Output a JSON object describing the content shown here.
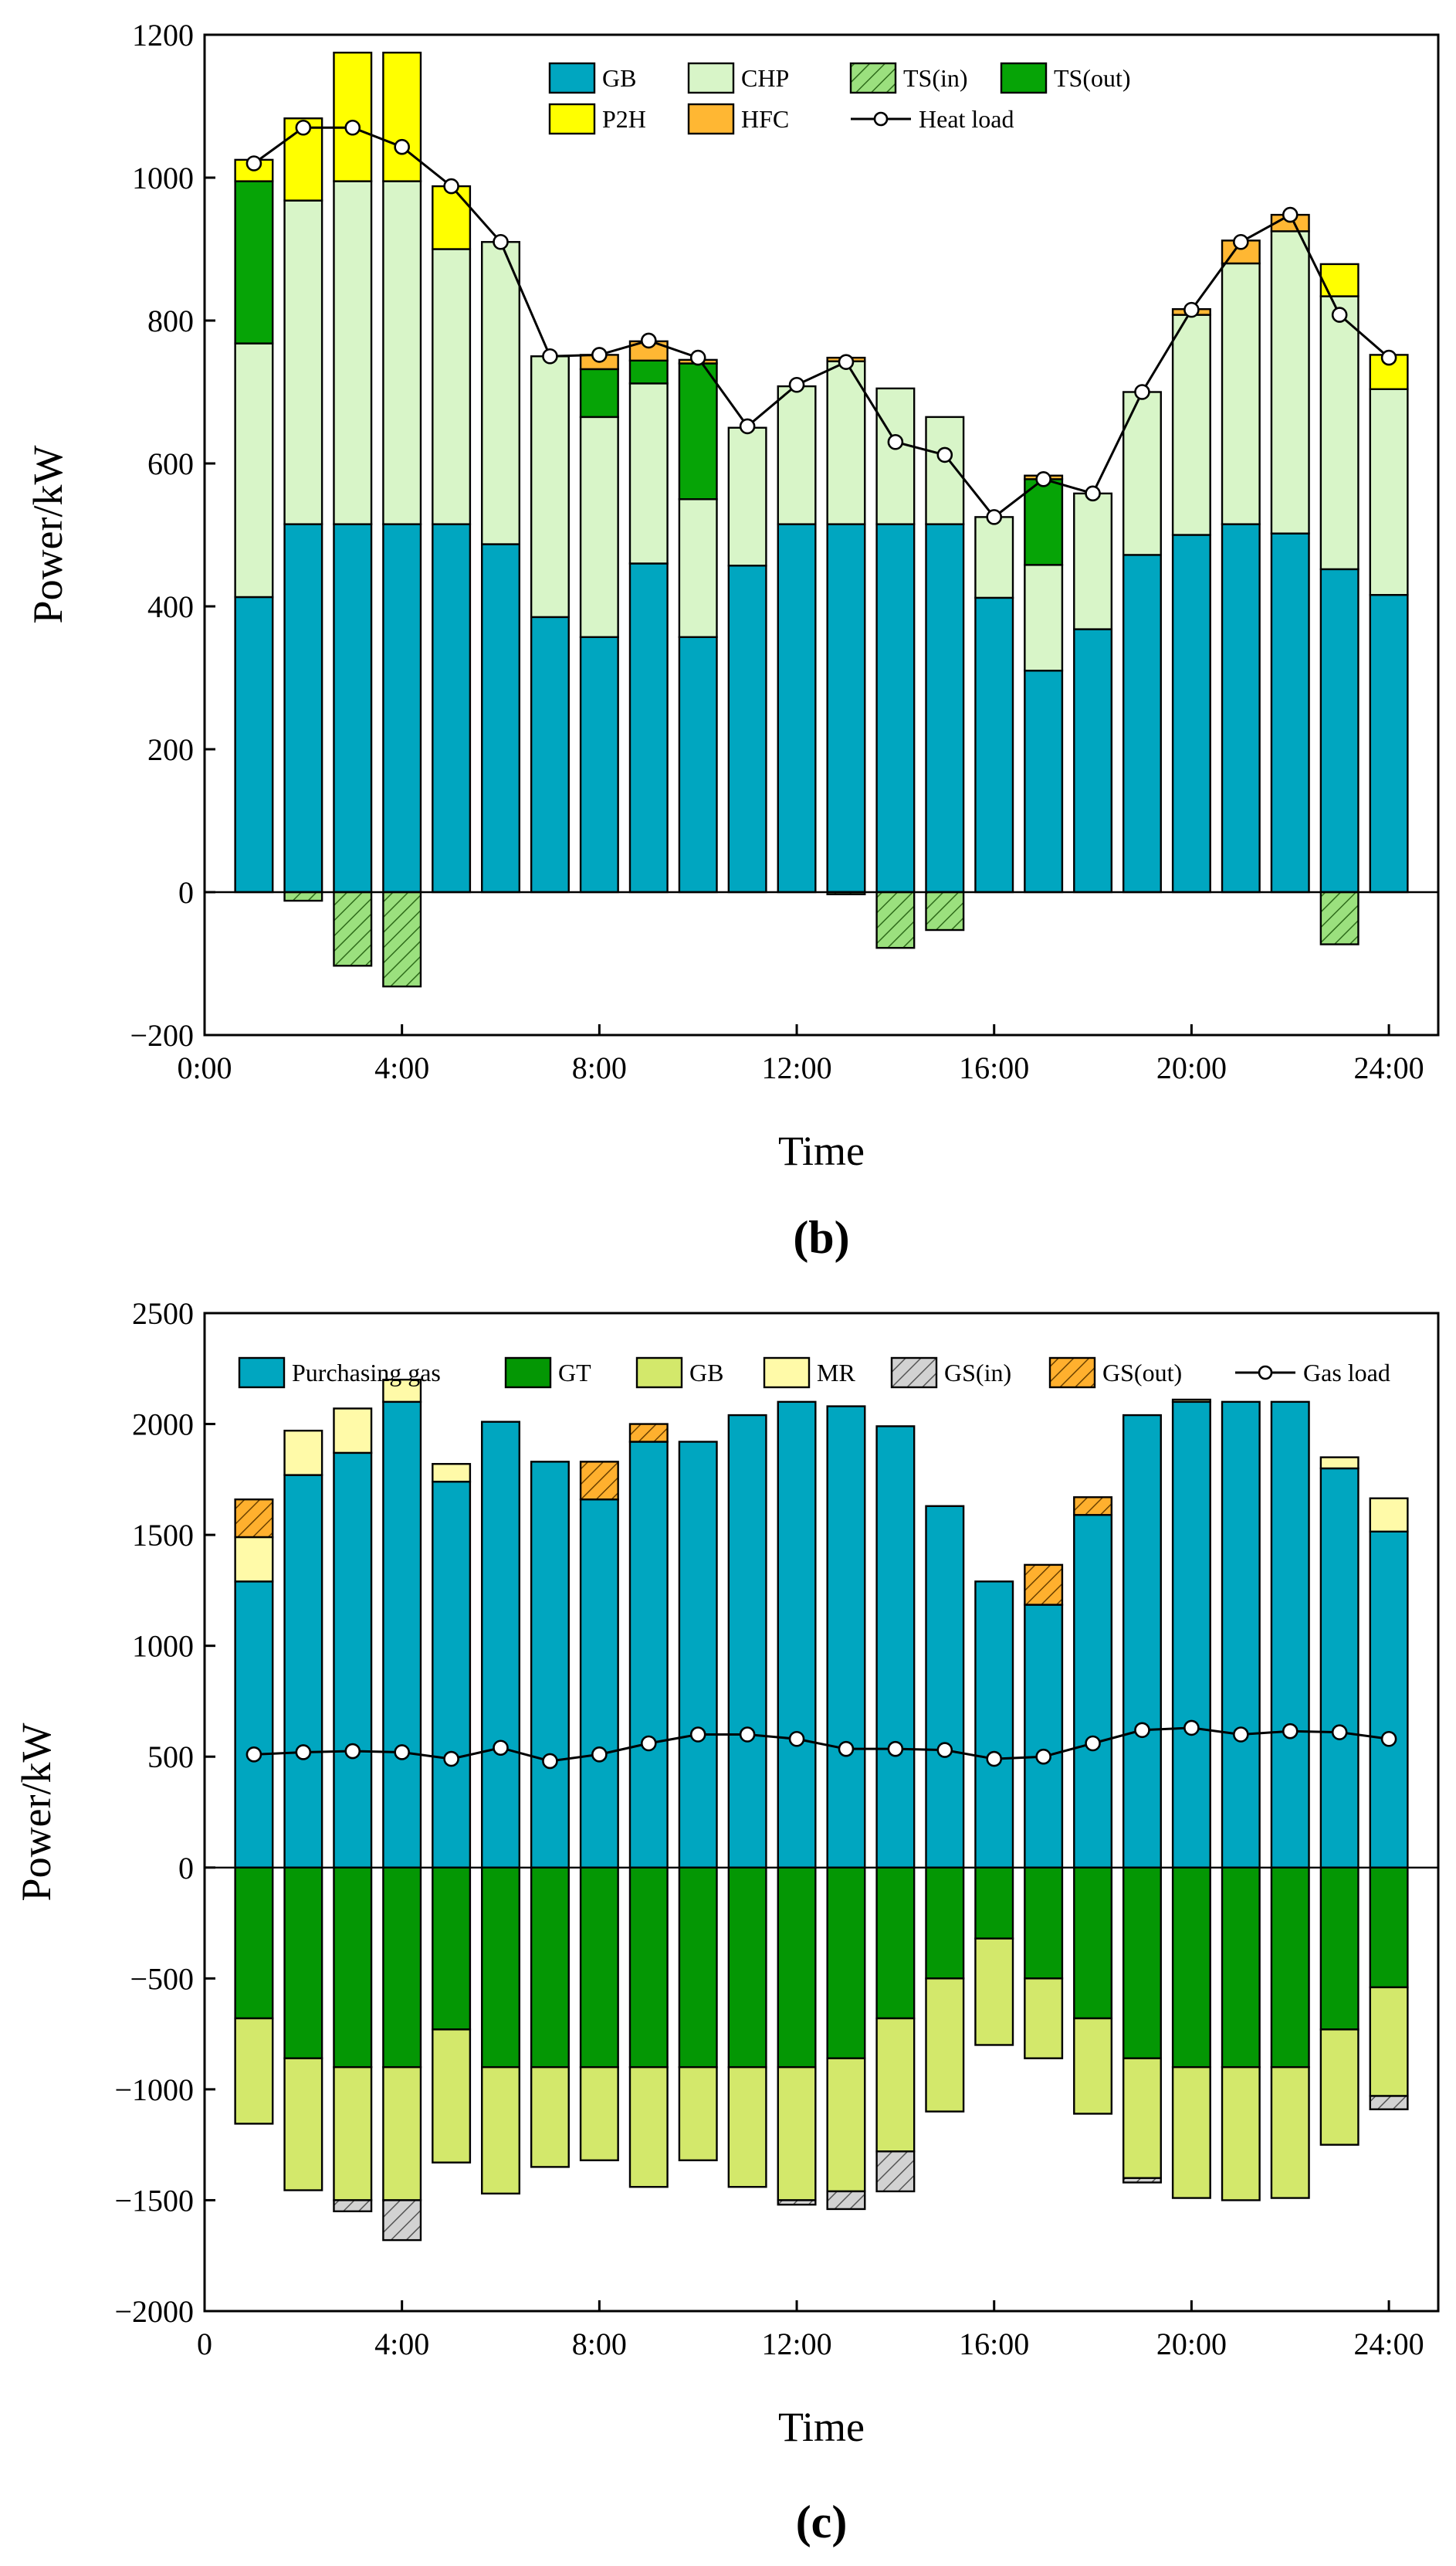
{
  "panels": [
    {
      "tag": "b",
      "panel_label": "(b)",
      "xlabel": "Time",
      "ylabel": "Power/kW",
      "xlim": [
        0,
        25
      ],
      "ylim": [
        -200,
        1200
      ],
      "yticks": [
        -200,
        0,
        200,
        400,
        600,
        800,
        1000,
        1200
      ],
      "xticks": [
        0,
        4,
        8,
        12,
        16,
        20,
        24
      ],
      "xtick_labels": [
        "0:00",
        "4:00",
        "8:00",
        "12:00",
        "16:00",
        "20:00",
        "24:00"
      ],
      "legend_position": "top-center",
      "legend_rows": [
        [
          0,
          1,
          2,
          3
        ],
        [
          4,
          5,
          6
        ]
      ]
    },
    {
      "tag": "c",
      "panel_label": "(c)",
      "xlabel": "Time",
      "ylabel": "Power/kW",
      "xlim": [
        0,
        25
      ],
      "ylim": [
        -2000,
        2500
      ],
      "yticks": [
        -2000,
        -1500,
        -1000,
        -500,
        0,
        500,
        1000,
        1500,
        2000,
        2500
      ],
      "xticks": [
        0,
        4,
        8,
        12,
        16,
        20,
        24
      ],
      "xtick_labels": [
        "0",
        "4:00",
        "8:00",
        "12:00",
        "16:00",
        "20:00",
        "24:00"
      ],
      "legend_position": "top",
      "legend_rows": [
        [
          0,
          1,
          2,
          3,
          4,
          5,
          6
        ]
      ]
    }
  ],
  "chart_data": [
    {
      "type": "bar",
      "stacking": "stacked-with-negative",
      "title": "(b)",
      "xlabel": "Time",
      "ylabel": "Power/kW",
      "ylim": [
        -200,
        1200
      ],
      "categories": [
        "1",
        "2",
        "3",
        "4",
        "5",
        "6",
        "7",
        "8",
        "9",
        "10",
        "11",
        "12",
        "13",
        "14",
        "15",
        "16",
        "17",
        "18",
        "19",
        "20",
        "21",
        "22",
        "23",
        "24"
      ],
      "series": [
        {
          "name": "GB",
          "color": "#00A6C0",
          "values": [
            413,
            515,
            515,
            515,
            515,
            487,
            385,
            357,
            460,
            357,
            457,
            515,
            515,
            515,
            515,
            412,
            310,
            368,
            472,
            500,
            515,
            502,
            452,
            416
          ]
        },
        {
          "name": "CHP",
          "color": "#D8F5C8",
          "values": [
            355,
            453,
            480,
            480,
            385,
            423,
            365,
            308,
            252,
            193,
            193,
            193,
            228,
            190,
            150,
            113,
            148,
            190,
            228,
            308,
            365,
            423,
            382,
            288
          ]
        },
        {
          "name": "TS(in)",
          "color": "#9BE07E",
          "pattern": "hatch",
          "values": [
            0,
            -12,
            -103,
            -132,
            0,
            0,
            0,
            0,
            0,
            0,
            0,
            0,
            -3,
            -78,
            -53,
            0,
            0,
            0,
            0,
            0,
            0,
            0,
            -73,
            0
          ]
        },
        {
          "name": "TS(out)",
          "color": "#06A406",
          "values": [
            227,
            0,
            0,
            0,
            0,
            0,
            0,
            67,
            32,
            190,
            0,
            0,
            0,
            0,
            0,
            0,
            120,
            0,
            0,
            0,
            0,
            0,
            0,
            0
          ]
        },
        {
          "name": "P2H",
          "color": "#FFFF00",
          "values": [
            30,
            115,
            180,
            180,
            88,
            0,
            0,
            0,
            0,
            0,
            0,
            0,
            0,
            0,
            0,
            0,
            0,
            0,
            0,
            0,
            0,
            0,
            45,
            48
          ]
        },
        {
          "name": "HFC",
          "color": "#FFB733",
          "values": [
            0,
            0,
            0,
            0,
            0,
            0,
            0,
            20,
            27,
            5,
            0,
            0,
            5,
            0,
            0,
            0,
            5,
            0,
            0,
            8,
            32,
            23,
            0,
            0
          ]
        },
        {
          "name": "Heat load",
          "type": "line",
          "color": "#000000",
          "values": [
            1020,
            1070,
            1070,
            1043,
            988,
            910,
            750,
            752,
            772,
            748,
            652,
            710,
            742,
            630,
            612,
            525,
            578,
            558,
            700,
            815,
            910,
            948,
            808,
            748
          ]
        }
      ]
    },
    {
      "type": "bar",
      "stacking": "stacked-with-negative",
      "title": "(c)",
      "xlabel": "Time",
      "ylabel": "Power/kW",
      "ylim": [
        -2000,
        2500
      ],
      "categories": [
        "1",
        "2",
        "3",
        "4",
        "5",
        "6",
        "7",
        "8",
        "9",
        "10",
        "11",
        "12",
        "13",
        "14",
        "15",
        "16",
        "17",
        "18",
        "19",
        "20",
        "21",
        "22",
        "23",
        "24"
      ],
      "series": [
        {
          "name": "Purchasing gas",
          "color": "#00A6C0",
          "values": [
            1290,
            1770,
            1870,
            2100,
            1740,
            2010,
            1830,
            1660,
            1920,
            1920,
            2040,
            2100,
            2080,
            1990,
            1630,
            1290,
            1185,
            1590,
            2040,
            2100,
            2100,
            2100,
            1800,
            1515
          ]
        },
        {
          "name": "GT",
          "color": "#049704",
          "values": [
            -680,
            -860,
            -900,
            -900,
            -730,
            -900,
            -900,
            -900,
            -900,
            -900,
            -900,
            -900,
            -860,
            -680,
            -500,
            -320,
            -500,
            -680,
            -860,
            -900,
            -900,
            -900,
            -730,
            -540
          ]
        },
        {
          "name": "GB",
          "color": "#D3E86B",
          "values": [
            -475,
            -595,
            -600,
            -600,
            -600,
            -570,
            -450,
            -420,
            -540,
            -420,
            -540,
            -600,
            -600,
            -600,
            -600,
            -480,
            -360,
            -430,
            -540,
            -590,
            -600,
            -590,
            -520,
            -490
          ]
        },
        {
          "name": "MR",
          "color": "#FFFAA8",
          "values": [
            200,
            200,
            200,
            100,
            80,
            0,
            0,
            0,
            0,
            0,
            0,
            0,
            0,
            0,
            0,
            0,
            0,
            0,
            0,
            10,
            0,
            0,
            50,
            150
          ]
        },
        {
          "name": "GS(in)",
          "color": "#D2D2D2",
          "pattern": "hatch",
          "values": [
            0,
            0,
            -50,
            -180,
            0,
            0,
            0,
            0,
            0,
            0,
            0,
            -20,
            -80,
            -180,
            0,
            0,
            0,
            0,
            -20,
            0,
            0,
            0,
            0,
            -60
          ]
        },
        {
          "name": "GS(out)",
          "color": "#FFB02E",
          "pattern": "hatch",
          "values": [
            170,
            0,
            0,
            0,
            0,
            0,
            0,
            170,
            80,
            0,
            0,
            0,
            0,
            0,
            0,
            0,
            180,
            80,
            0,
            0,
            0,
            0,
            0,
            0
          ]
        },
        {
          "name": "Gas load",
          "type": "line",
          "color": "#000000",
          "values": [
            510,
            520,
            525,
            520,
            490,
            540,
            480,
            510,
            560,
            600,
            600,
            580,
            535,
            535,
            530,
            490,
            500,
            560,
            620,
            630,
            600,
            615,
            610,
            580
          ]
        }
      ]
    }
  ]
}
